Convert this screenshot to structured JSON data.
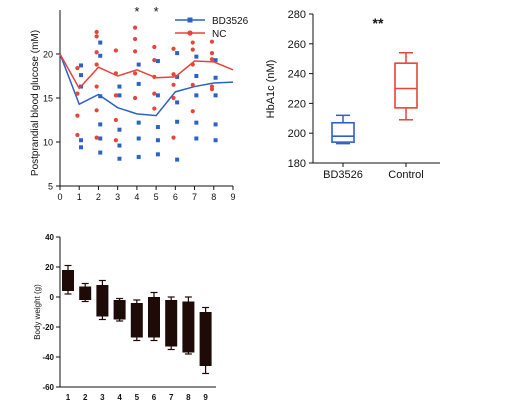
{
  "chart_data": [
    {
      "type": "scatter",
      "ylabel": "Postprandial blood glucose (mM)",
      "xlabel": "",
      "xlim": [
        0,
        9
      ],
      "ylim": [
        5,
        25
      ],
      "x_ticks": [
        "0",
        "1",
        "2",
        "3",
        "4",
        "5",
        "6",
        "7",
        "8",
        "9"
      ],
      "y_ticks": [
        "5",
        "10",
        "15",
        "20"
      ],
      "significance": [
        {
          "x": 4,
          "label": "*"
        },
        {
          "x": 5,
          "label": "*"
        }
      ],
      "legend": {
        "position": "top-right"
      },
      "series": [
        {
          "name": "BD3526",
          "color": "#2a62c8",
          "marker": "square",
          "mean_line": {
            "x": [
              0,
              1,
              2,
              3,
              4,
              5,
              6,
              7,
              8,
              9
            ],
            "y": [
              20,
              14.3,
              15.4,
              13.9,
              13.2,
              13.0,
              15.7,
              16.3,
              16.7,
              16.8
            ]
          },
          "points": [
            [
              1,
              18.7
            ],
            [
              1,
              17.6
            ],
            [
              1,
              16.3
            ],
            [
              1,
              10.2
            ],
            [
              1,
              9.4
            ],
            [
              2,
              21.3
            ],
            [
              2,
              19.8
            ],
            [
              2,
              15.2
            ],
            [
              2,
              12.0
            ],
            [
              2,
              10.4
            ],
            [
              2,
              8.8
            ],
            [
              3,
              16.3
            ],
            [
              3,
              15.3
            ],
            [
              3,
              11.4
            ],
            [
              3,
              9.6
            ],
            [
              3,
              8.1
            ],
            [
              4,
              18.8
            ],
            [
              4,
              16.6
            ],
            [
              4,
              12.2
            ],
            [
              4,
              10.4
            ],
            [
              4,
              8.3
            ],
            [
              5,
              19.2
            ],
            [
              5,
              15.3
            ],
            [
              5,
              11.7
            ],
            [
              5,
              10.2
            ],
            [
              5,
              8.6
            ],
            [
              6,
              20.1
            ],
            [
              6,
              17.4
            ],
            [
              6,
              14.5
            ],
            [
              6,
              12.3
            ],
            [
              6,
              8.0
            ],
            [
              7,
              19.7
            ],
            [
              7,
              17.5
            ],
            [
              7,
              15.3
            ],
            [
              7,
              12.2
            ],
            [
              7,
              10.4
            ],
            [
              8,
              19.3
            ],
            [
              8,
              17.3
            ],
            [
              8,
              15.3
            ],
            [
              8,
              12.0
            ],
            [
              8,
              10.2
            ]
          ]
        },
        {
          "name": "NC",
          "color": "#e8443a",
          "marker": "circle",
          "mean_line": {
            "x": [
              0,
              1,
              2,
              3,
              4,
              5,
              6,
              7,
              8,
              9
            ],
            "y": [
              20,
              16.1,
              18.5,
              17.5,
              18.2,
              17.3,
              17.4,
              19.2,
              19.1,
              18.2
            ]
          },
          "points": [
            [
              1,
              18.4
            ],
            [
              1,
              15.5
            ],
            [
              1,
              13.0
            ],
            [
              1,
              10.8
            ],
            [
              2,
              22.5
            ],
            [
              2,
              22.0
            ],
            [
              2,
              20.2
            ],
            [
              2,
              18.8
            ],
            [
              2,
              16.3
            ],
            [
              2,
              13.6
            ],
            [
              2,
              10.5
            ],
            [
              3,
              20.4
            ],
            [
              3,
              17.8
            ],
            [
              3,
              15.3
            ],
            [
              3,
              12.5
            ],
            [
              3,
              10.2
            ],
            [
              4,
              23.0
            ],
            [
              4,
              21.7
            ],
            [
              4,
              20.3
            ],
            [
              4,
              17.8
            ],
            [
              4,
              15.0
            ],
            [
              5,
              20.8
            ],
            [
              5,
              19.3
            ],
            [
              5,
              17.4
            ],
            [
              5,
              15.5
            ],
            [
              5,
              13.8
            ],
            [
              6,
              20.6
            ],
            [
              6,
              17.7
            ],
            [
              6,
              16.5
            ],
            [
              6,
              15.0
            ],
            [
              6,
              10.5
            ],
            [
              7,
              21.3
            ],
            [
              7,
              20.5
            ],
            [
              7,
              18.8
            ],
            [
              7,
              16.5
            ],
            [
              7,
              13.5
            ],
            [
              8,
              21.4
            ],
            [
              8,
              20.1
            ],
            [
              8,
              19.4
            ],
            [
              8,
              16.3
            ],
            [
              8,
              16.0
            ]
          ]
        }
      ]
    },
    {
      "type": "box",
      "ylabel": "HbA1c (nM)",
      "xlabel": "",
      "ylim": [
        180,
        280
      ],
      "y_ticks": [
        "180",
        "200",
        "220",
        "240",
        "260",
        "280"
      ],
      "categories": [
        "BD3526",
        "Control"
      ],
      "annotation": "**",
      "boxes": [
        {
          "name": "BD3526",
          "color": "#2a62c8",
          "min": 193,
          "q1": 194,
          "median": 198,
          "q3": 207,
          "max": 212
        },
        {
          "name": "Control",
          "color": "#e8443a",
          "min": 209,
          "q1": 217,
          "median": 230,
          "q3": 247,
          "max": 254
        }
      ]
    },
    {
      "type": "bar",
      "ylabel": "Body weight (g)",
      "xlabel": "",
      "ylim": [
        -60,
        40
      ],
      "y_ticks": [
        "40",
        "20",
        "0",
        "-20",
        "-40",
        "-60"
      ],
      "categories": [
        "1",
        "2",
        "3",
        "4",
        "5",
        "6",
        "7",
        "8",
        "9"
      ],
      "color": "#1e0a06",
      "floating_bars": [
        {
          "low": 4,
          "high": 18,
          "err_low": 2,
          "err_high": 21
        },
        {
          "low": -2,
          "high": 7,
          "err_low": -3,
          "err_high": 9
        },
        {
          "low": -13,
          "high": 8,
          "err_low": -15,
          "err_high": 11
        },
        {
          "low": -15,
          "high": -2,
          "err_low": -16,
          "err_high": -1
        },
        {
          "low": -27,
          "high": -4,
          "err_low": -29,
          "err_high": -2
        },
        {
          "low": -27,
          "high": 0,
          "err_low": -29,
          "err_high": 3
        },
        {
          "low": -33,
          "high": -2,
          "err_low": -35,
          "err_high": 0
        },
        {
          "low": -37,
          "high": -3,
          "err_low": -38,
          "err_high": 0
        },
        {
          "low": -46,
          "high": -10,
          "err_low": -51,
          "err_high": -7
        }
      ]
    }
  ]
}
